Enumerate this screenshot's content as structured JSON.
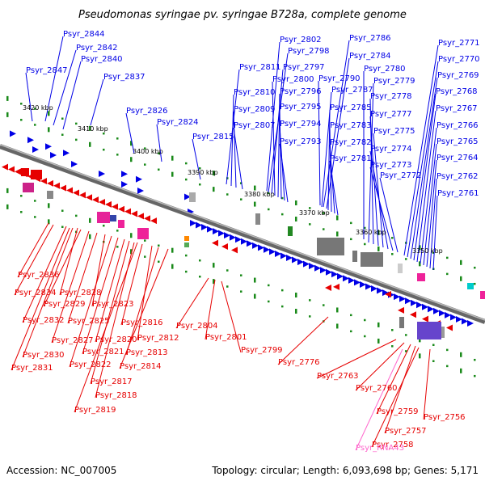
{
  "title": "Pseudomonas syringae pv. syringae B728a, complete genome",
  "footer": {
    "accession": "Accession: NC_007005",
    "summary": "Topology: circular; Length: 6,093,698 bp; Genes: 5,171"
  },
  "colors": {
    "forward_strand": "#0000e6",
    "reverse_strand": "#e60000",
    "rna": "#ff66cc",
    "axis": "#808080",
    "tick_dots": "#1a8a1a"
  },
  "scale_labels": [
    "3420 kbp",
    "3410 kbp",
    "3400 kbp",
    "3390 kbp",
    "3380 kbp",
    "3370 kbp",
    "3360 kbp",
    "3350 kbp"
  ],
  "forward_genes": [
    "Psyr_2844",
    "Psyr_2842",
    "Psyr_2840",
    "Psyr_2847",
    "Psyr_2837",
    "Psyr_2826",
    "Psyr_2824",
    "Psyr_2815",
    "Psyr_2811",
    "Psyr_2810",
    "Psyr_2809",
    "Psyr_2807",
    "Psyr_2802",
    "Psyr_2798",
    "Psyr_2797",
    "Psyr_2800",
    "Psyr_2796",
    "Psyr_2795",
    "Psyr_2794",
    "Psyr_2793",
    "Psyr_2786",
    "Psyr_2784",
    "Psyr_2780",
    "Psyr_2790",
    "Psyr_2779",
    "Psyr_2787",
    "Psyr_2778",
    "Psyr_2785",
    "Psyr_2777",
    "Psyr_2783",
    "Psyr_2775",
    "Psyr_2782",
    "Psyr_2774",
    "Psyr_2781",
    "Psyr_2773",
    "Psyr_2772",
    "Psyr_2771",
    "Psyr_2770",
    "Psyr_2769",
    "Psyr_2768",
    "Psyr_2767",
    "Psyr_2766",
    "Psyr_2765",
    "Psyr_2764",
    "Psyr_2762",
    "Psyr_2761"
  ],
  "reverse_genes": [
    "Psyr_2836",
    "Psyr_2834",
    "Psyr_2828",
    "Psyr_2829",
    "Psyr_2832",
    "Psyr_2825",
    "Psyr_2823",
    "Psyr_2827",
    "Psyr_2830",
    "Psyr_2831",
    "Psyr_2822",
    "Psyr_2821",
    "Psyr_2820",
    "Psyr_2817",
    "Psyr_2818",
    "Psyr_2819",
    "Psyr_2816",
    "Psyr_2812",
    "Psyr_2813",
    "Psyr_2814",
    "Psyr_2804",
    "Psyr_2801",
    "Psyr_2799",
    "Psyr_2776",
    "Psyr_2763",
    "Psyr_2760",
    "Psyr_2759",
    "Psyr_2757",
    "Psyr_2758",
    "Psyr_2756"
  ],
  "rna_genes": [
    "Psyr_RNA43"
  ]
}
